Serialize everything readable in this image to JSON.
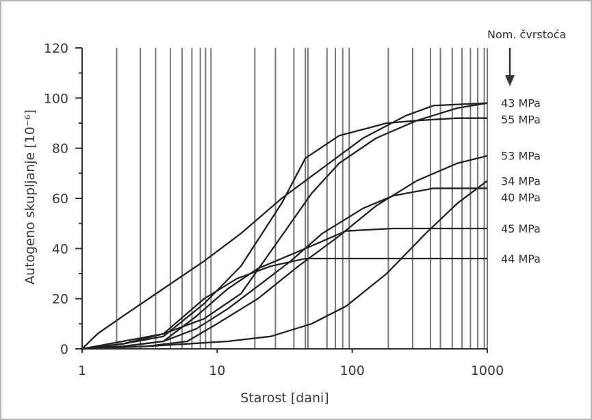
{
  "chart_data": {
    "type": "line",
    "title": "",
    "xlabel": "Starost [dani]",
    "ylabel": "Autogeno skupljanje [10⁻⁶]",
    "x_scale": "log",
    "xlim": [
      1,
      1000
    ],
    "ylim": [
      0,
      120
    ],
    "x_ticks": [
      1,
      10,
      100,
      1000
    ],
    "x_tick_labels": [
      "1",
      "10",
      "100",
      "1000"
    ],
    "y_ticks": [
      0,
      20,
      40,
      60,
      80,
      100,
      120
    ],
    "y_tick_labels": [
      "0",
      "20",
      "40",
      "60",
      "80",
      "100",
      "120"
    ],
    "legend_title": "Nom. čvrstoća",
    "grid": "vertical",
    "grid_x": [
      1.8,
      2.7,
      3.5,
      4.5,
      5.5,
      6.5,
      7.5,
      8.2,
      9,
      19,
      27,
      37,
      45,
      47,
      65,
      75,
      85,
      95,
      185,
      280,
      380,
      450,
      550,
      650,
      750,
      850,
      950
    ],
    "line_color": "#222222",
    "series": [
      {
        "name": "43 MPa",
        "points": [
          [
            1,
            0
          ],
          [
            2,
            3
          ],
          [
            4,
            6
          ],
          [
            8,
            12
          ],
          [
            15,
            22
          ],
          [
            30,
            45
          ],
          [
            50,
            62
          ],
          [
            80,
            74
          ],
          [
            150,
            84
          ],
          [
            300,
            91
          ],
          [
            600,
            96
          ],
          [
            1000,
            98
          ]
        ]
      },
      {
        "name": "55 MPa",
        "points": [
          [
            1,
            0
          ],
          [
            2,
            2
          ],
          [
            4,
            5
          ],
          [
            8,
            18
          ],
          [
            15,
            33
          ],
          [
            30,
            58
          ],
          [
            45,
            76
          ],
          [
            80,
            85
          ],
          [
            180,
            90
          ],
          [
            300,
            91
          ],
          [
            600,
            92
          ],
          [
            1000,
            92
          ]
        ]
      },
      {
        "name": "34 MPa",
        "points": [
          [
            1,
            0
          ],
          [
            3,
            1
          ],
          [
            6,
            2
          ],
          [
            12,
            3
          ],
          [
            25,
            5
          ],
          [
            50,
            10
          ],
          [
            90,
            17
          ],
          [
            180,
            30
          ],
          [
            350,
            46
          ],
          [
            600,
            58
          ],
          [
            1000,
            67
          ]
        ]
      },
      {
        "name": "40 MPa",
        "points": [
          [
            1,
            0
          ],
          [
            2,
            1
          ],
          [
            4,
            3
          ],
          [
            7,
            8
          ],
          [
            12,
            16
          ],
          [
            20,
            25
          ],
          [
            35,
            35
          ],
          [
            60,
            46
          ],
          [
            120,
            56
          ],
          [
            200,
            61
          ],
          [
            400,
            64
          ],
          [
            1000,
            64
          ]
        ]
      },
      {
        "name": "53 MPa",
        "points": [
          [
            1,
            0
          ],
          [
            3,
            1
          ],
          [
            6,
            3
          ],
          [
            10,
            10
          ],
          [
            20,
            20
          ],
          [
            40,
            33
          ],
          [
            80,
            45
          ],
          [
            150,
            57
          ],
          [
            300,
            67
          ],
          [
            600,
            74
          ],
          [
            1000,
            77
          ]
        ]
      },
      {
        "name": "45 MPa",
        "points": [
          [
            1,
            0
          ],
          [
            2,
            1
          ],
          [
            4,
            3
          ],
          [
            7,
            13
          ],
          [
            12,
            24
          ],
          [
            20,
            32
          ],
          [
            45,
            40
          ],
          [
            90,
            47
          ],
          [
            200,
            48
          ],
          [
            500,
            48
          ],
          [
            1000,
            48
          ]
        ]
      },
      {
        "name": "44 MPa",
        "points": [
          [
            1,
            0
          ],
          [
            2,
            2
          ],
          [
            4,
            6
          ],
          [
            8,
            20
          ],
          [
            14,
            28
          ],
          [
            25,
            33
          ],
          [
            45,
            36
          ],
          [
            100,
            36
          ],
          [
            300,
            36
          ],
          [
            1000,
            36
          ]
        ]
      },
      {
        "name": "",
        "points": [
          [
            1,
            0
          ],
          [
            1.3,
            6
          ],
          [
            2,
            13
          ],
          [
            4,
            24
          ],
          [
            8,
            35
          ],
          [
            15,
            46
          ],
          [
            30,
            60
          ],
          [
            60,
            72
          ],
          [
            120,
            84
          ],
          [
            250,
            93
          ],
          [
            400,
            97
          ],
          [
            1000,
            98
          ]
        ]
      }
    ]
  }
}
